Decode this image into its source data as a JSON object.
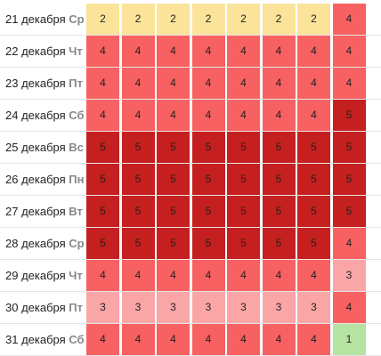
{
  "columns": 8,
  "rows": [
    {
      "day": "21 декабря",
      "weekday": "Ср",
      "values": [
        2,
        2,
        2,
        2,
        2,
        2,
        2,
        4
      ]
    },
    {
      "day": "22 декабря",
      "weekday": "Чт",
      "values": [
        4,
        4,
        4,
        4,
        4,
        4,
        4,
        4
      ]
    },
    {
      "day": "23 декабря",
      "weekday": "Пт",
      "values": [
        4,
        4,
        4,
        4,
        4,
        4,
        4,
        4
      ]
    },
    {
      "day": "24 декабря",
      "weekday": "Сб",
      "values": [
        4,
        4,
        4,
        4,
        4,
        4,
        4,
        5
      ]
    },
    {
      "day": "25 декабря",
      "weekday": "Вс",
      "values": [
        5,
        5,
        5,
        5,
        5,
        5,
        5,
        5
      ]
    },
    {
      "day": "26 декабря",
      "weekday": "Пн",
      "values": [
        5,
        5,
        5,
        5,
        5,
        5,
        5,
        5
      ]
    },
    {
      "day": "27 декабря",
      "weekday": "Вт",
      "values": [
        5,
        5,
        5,
        5,
        5,
        5,
        5,
        5
      ]
    },
    {
      "day": "28 декабря",
      "weekday": "Ср",
      "values": [
        5,
        5,
        5,
        5,
        5,
        5,
        5,
        4
      ]
    },
    {
      "day": "29 декабря",
      "weekday": "Чт",
      "values": [
        4,
        4,
        4,
        4,
        4,
        4,
        4,
        3
      ]
    },
    {
      "day": "30 декабря",
      "weekday": "Пт",
      "values": [
        3,
        3,
        3,
        3,
        3,
        3,
        3,
        4
      ]
    },
    {
      "day": "31 декабря",
      "weekday": "Сб",
      "values": [
        4,
        4,
        4,
        4,
        4,
        4,
        4,
        1
      ]
    }
  ],
  "level_colors": {
    "1": "#b5e3a1",
    "2": "#fbe39a",
    "3": "#fba6a6",
    "4": "#f86161",
    "5": "#c51f1f"
  }
}
